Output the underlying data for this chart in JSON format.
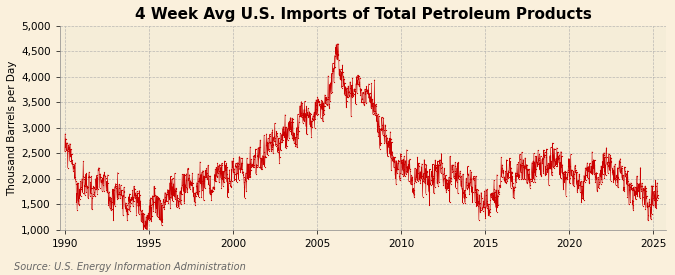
{
  "title": "4 Week Avg U.S. Imports of Total Petroleum Products",
  "ylabel": "Thousand Barrels per Day",
  "source": "Source: U.S. Energy Information Administration",
  "ylim": [
    1000,
    5000
  ],
  "yticks": [
    1000,
    1500,
    2000,
    2500,
    3000,
    3500,
    4000,
    4500,
    5000
  ],
  "xlim_start": 1989.7,
  "xlim_end": 2025.8,
  "xticks": [
    1990,
    1995,
    2000,
    2005,
    2010,
    2015,
    2020,
    2025
  ],
  "line_color": "#CC0000",
  "background_color": "#FAF0DC",
  "plot_bg_color": "#F5EDD8",
  "title_fontsize": 11,
  "label_fontsize": 7.5,
  "tick_fontsize": 7.5,
  "source_fontsize": 7
}
